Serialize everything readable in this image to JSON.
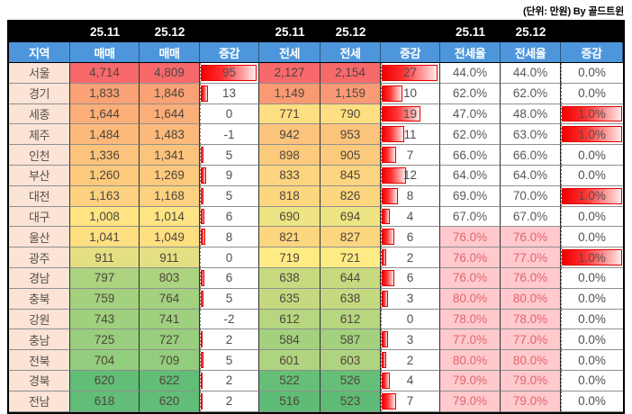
{
  "unit_note": "(단위: 만원) By 골드트윈",
  "colors": {
    "header_blue": "#4E96DB",
    "header_black": "#000000",
    "region_bg": "#FBE3D6",
    "hot_bg": "#FFC9CE",
    "hot_text": "#E0656C",
    "bar_red": "#F20000",
    "scale_red": "#F8696B",
    "scale_yellow": "#FFEB84",
    "scale_green": "#5FBC76"
  },
  "table": {
    "date_headers": [
      "",
      "25.11",
      "25.12",
      "",
      "25.11",
      "25.12",
      "",
      "25.11",
      "25.12",
      ""
    ],
    "col_headers": [
      "지역",
      "매매",
      "매매",
      "증감",
      "전세",
      "전세",
      "증감",
      "전세율",
      "전세율",
      "증감"
    ],
    "max_sale_chg": 95,
    "max_jeonse_chg": 27,
    "rows": [
      {
        "region": "서울",
        "sale": [
          "4,714",
          "4,809"
        ],
        "sale_bg": "#F8696B",
        "sale_chg": "95",
        "sale_chg_v": 95,
        "jeonse": [
          "2,127",
          "2,154"
        ],
        "jeonse_bg": "#F8696B",
        "jeonse_chg": "27",
        "jeonse_chg_v": 27,
        "ratio": [
          "44.0%",
          "44.0%"
        ],
        "ratio_hot": false,
        "ratio_chg": "0.0%",
        "ratio_chg_bar": false
      },
      {
        "region": "경기",
        "sale": [
          "1,833",
          "1,846"
        ],
        "sale_bg": "#FAA175",
        "sale_chg": "13",
        "sale_chg_v": 13,
        "jeonse": [
          "1,149",
          "1,159"
        ],
        "jeonse_bg": "#FA9A74",
        "jeonse_chg": "10",
        "jeonse_chg_v": 10,
        "ratio": [
          "62.0%",
          "62.0%"
        ],
        "ratio_hot": false,
        "ratio_chg": "0.0%",
        "ratio_chg_bar": false
      },
      {
        "region": "세종",
        "sale": [
          "1,644",
          "1,644"
        ],
        "sale_bg": "#FBAE78",
        "sale_chg": "0",
        "sale_chg_v": 0,
        "jeonse": [
          "771",
          "790"
        ],
        "jeonse_bg": "#FEDF81",
        "jeonse_chg": "19",
        "jeonse_chg_v": 19,
        "ratio": [
          "47.0%",
          "48.0%"
        ],
        "ratio_hot": false,
        "ratio_chg": "1.0%",
        "ratio_chg_bar": true
      },
      {
        "region": "제주",
        "sale": [
          "1,484",
          "1,483"
        ],
        "sale_bg": "#FCB97A",
        "sale_chg": "-1",
        "sale_chg_v": -1,
        "jeonse": [
          "942",
          "953"
        ],
        "jeonse_bg": "#FCC37C",
        "jeonse_chg": "11",
        "jeonse_chg_v": 11,
        "ratio": [
          "62.0%",
          "63.0%"
        ],
        "ratio_hot": false,
        "ratio_chg": "1.0%",
        "ratio_chg_bar": true
      },
      {
        "region": "인천",
        "sale": [
          "1,336",
          "1,341"
        ],
        "sale_bg": "#FCC37C",
        "sale_chg": "5",
        "sale_chg_v": 5,
        "jeonse": [
          "898",
          "905"
        ],
        "jeonse_bg": "#FCCA7D",
        "jeonse_chg": "7",
        "jeonse_chg_v": 7,
        "ratio": [
          "66.0%",
          "66.0%"
        ],
        "ratio_hot": false,
        "ratio_chg": "0.0%",
        "ratio_chg_bar": false
      },
      {
        "region": "부산",
        "sale": [
          "1,260",
          "1,269"
        ],
        "sale_bg": "#FDC97D",
        "sale_chg": "9",
        "sale_chg_v": 9,
        "jeonse": [
          "833",
          "845"
        ],
        "jeonse_bg": "#FDD480",
        "jeonse_chg": "12",
        "jeonse_chg_v": 12,
        "ratio": [
          "64.0%",
          "64.0%"
        ],
        "ratio_hot": false,
        "ratio_chg": "0.0%",
        "ratio_chg_bar": false
      },
      {
        "region": "대전",
        "sale": [
          "1,163",
          "1,168"
        ],
        "sale_bg": "#FDD17F",
        "sale_chg": "5",
        "sale_chg_v": 5,
        "jeonse": [
          "818",
          "826"
        ],
        "jeonse_bg": "#FDD780",
        "jeonse_chg": "8",
        "jeonse_chg_v": 8,
        "ratio": [
          "69.0%",
          "70.0%"
        ],
        "ratio_hot": false,
        "ratio_chg": "1.0%",
        "ratio_chg_bar": true
      },
      {
        "region": "대구",
        "sale": [
          "1,008",
          "1,014"
        ],
        "sale_bg": "#FEE482",
        "sale_chg": "6",
        "sale_chg_v": 6,
        "jeonse": [
          "690",
          "694"
        ],
        "jeonse_bg": "#EFE483",
        "jeonse_chg": "4",
        "jeonse_chg_v": 4,
        "ratio": [
          "67.0%",
          "67.0%"
        ],
        "ratio_hot": false,
        "ratio_chg": "0.0%",
        "ratio_chg_bar": false
      },
      {
        "region": "울산",
        "sale": [
          "1,041",
          "1,049"
        ],
        "sale_bg": "#FEDF81",
        "sale_chg": "8",
        "sale_chg_v": 8,
        "jeonse": [
          "821",
          "827"
        ],
        "jeonse_bg": "#FDD680",
        "jeonse_chg": "6",
        "jeonse_chg_v": 6,
        "ratio": [
          "76.0%",
          "76.0%"
        ],
        "ratio_hot": true,
        "ratio_chg": "0.0%",
        "ratio_chg_bar": false
      },
      {
        "region": "광주",
        "sale": [
          "911",
          "911"
        ],
        "sale_bg": "#E4DF82",
        "sale_chg": "0",
        "sale_chg_v": 0,
        "jeonse": [
          "719",
          "721"
        ],
        "jeonse_bg": "#FFEB84",
        "jeonse_chg": "2",
        "jeonse_chg_v": 2,
        "ratio": [
          "76.0%",
          "77.0%"
        ],
        "ratio_hot": true,
        "ratio_chg": "1.0%",
        "ratio_chg_bar": true
      },
      {
        "region": "경남",
        "sale": [
          "797",
          "803"
        ],
        "sale_bg": "#ACD37F",
        "sale_chg": "6",
        "sale_chg_v": 6,
        "jeonse": [
          "638",
          "644"
        ],
        "jeonse_bg": "#C7DA80",
        "jeonse_chg": "6",
        "jeonse_chg_v": 6,
        "ratio": [
          "76.0%",
          "76.0%"
        ],
        "ratio_hot": true,
        "ratio_chg": "0.0%",
        "ratio_chg_bar": false
      },
      {
        "region": "충북",
        "sale": [
          "759",
          "764"
        ],
        "sale_bg": "#A3D17E",
        "sale_chg": "5",
        "sale_chg_v": 5,
        "jeonse": [
          "635",
          "638"
        ],
        "jeonse_bg": "#C5DA80",
        "jeonse_chg": "3",
        "jeonse_chg_v": 3,
        "ratio": [
          "80.0%",
          "80.0%"
        ],
        "ratio_hot": true,
        "ratio_chg": "0.0%",
        "ratio_chg_bar": false
      },
      {
        "region": "강원",
        "sale": [
          "743",
          "741"
        ],
        "sale_bg": "#9ED07E",
        "sale_chg": "-2",
        "sale_chg_v": -2,
        "jeonse": [
          "612",
          "612"
        ],
        "jeonse_bg": "#B6D67F",
        "jeonse_chg": "0",
        "jeonse_chg_v": 0,
        "ratio": [
          "78.0%",
          "78.0%"
        ],
        "ratio_hot": true,
        "ratio_chg": "0.0%",
        "ratio_chg_bar": false
      },
      {
        "region": "충남",
        "sale": [
          "725",
          "727"
        ],
        "sale_bg": "#98CE7D",
        "sale_chg": "2",
        "sale_chg_v": 2,
        "jeonse": [
          "584",
          "587"
        ],
        "jeonse_bg": "#A3D17E",
        "jeonse_chg": "3",
        "jeonse_chg_v": 3,
        "ratio": [
          "77.0%",
          "77.0%"
        ],
        "ratio_hot": true,
        "ratio_chg": "0.0%",
        "ratio_chg_bar": false
      },
      {
        "region": "전북",
        "sale": [
          "704",
          "709"
        ],
        "sale_bg": "#91CD7D",
        "sale_chg": "5",
        "sale_chg_v": 5,
        "jeonse": [
          "601",
          "603"
        ],
        "jeonse_bg": "#AFD47F",
        "jeonse_chg": "2",
        "jeonse_chg_v": 2,
        "ratio": [
          "80.0%",
          "80.0%"
        ],
        "ratio_hot": true,
        "ratio_chg": "0.0%",
        "ratio_chg_bar": false
      },
      {
        "region": "경북",
        "sale": [
          "620",
          "622"
        ],
        "sale_bg": "#62BD77",
        "sale_chg": "2",
        "sale_chg_v": 2,
        "jeonse": [
          "522",
          "526"
        ],
        "jeonse_bg": "#66BF78",
        "jeonse_chg": "4",
        "jeonse_chg_v": 4,
        "ratio": [
          "79.0%",
          "79.0%"
        ],
        "ratio_hot": true,
        "ratio_chg": "0.0%",
        "ratio_chg_bar": false
      },
      {
        "region": "전남",
        "sale": [
          "618",
          "620"
        ],
        "sale_bg": "#61BD77",
        "sale_chg": "2",
        "sale_chg_v": 2,
        "jeonse": [
          "516",
          "523"
        ],
        "jeonse_bg": "#5FBC76",
        "jeonse_chg": "7",
        "jeonse_chg_v": 7,
        "ratio": [
          "79.0%",
          "79.0%"
        ],
        "ratio_hot": true,
        "ratio_chg": "0.0%",
        "ratio_chg_bar": false
      }
    ]
  }
}
